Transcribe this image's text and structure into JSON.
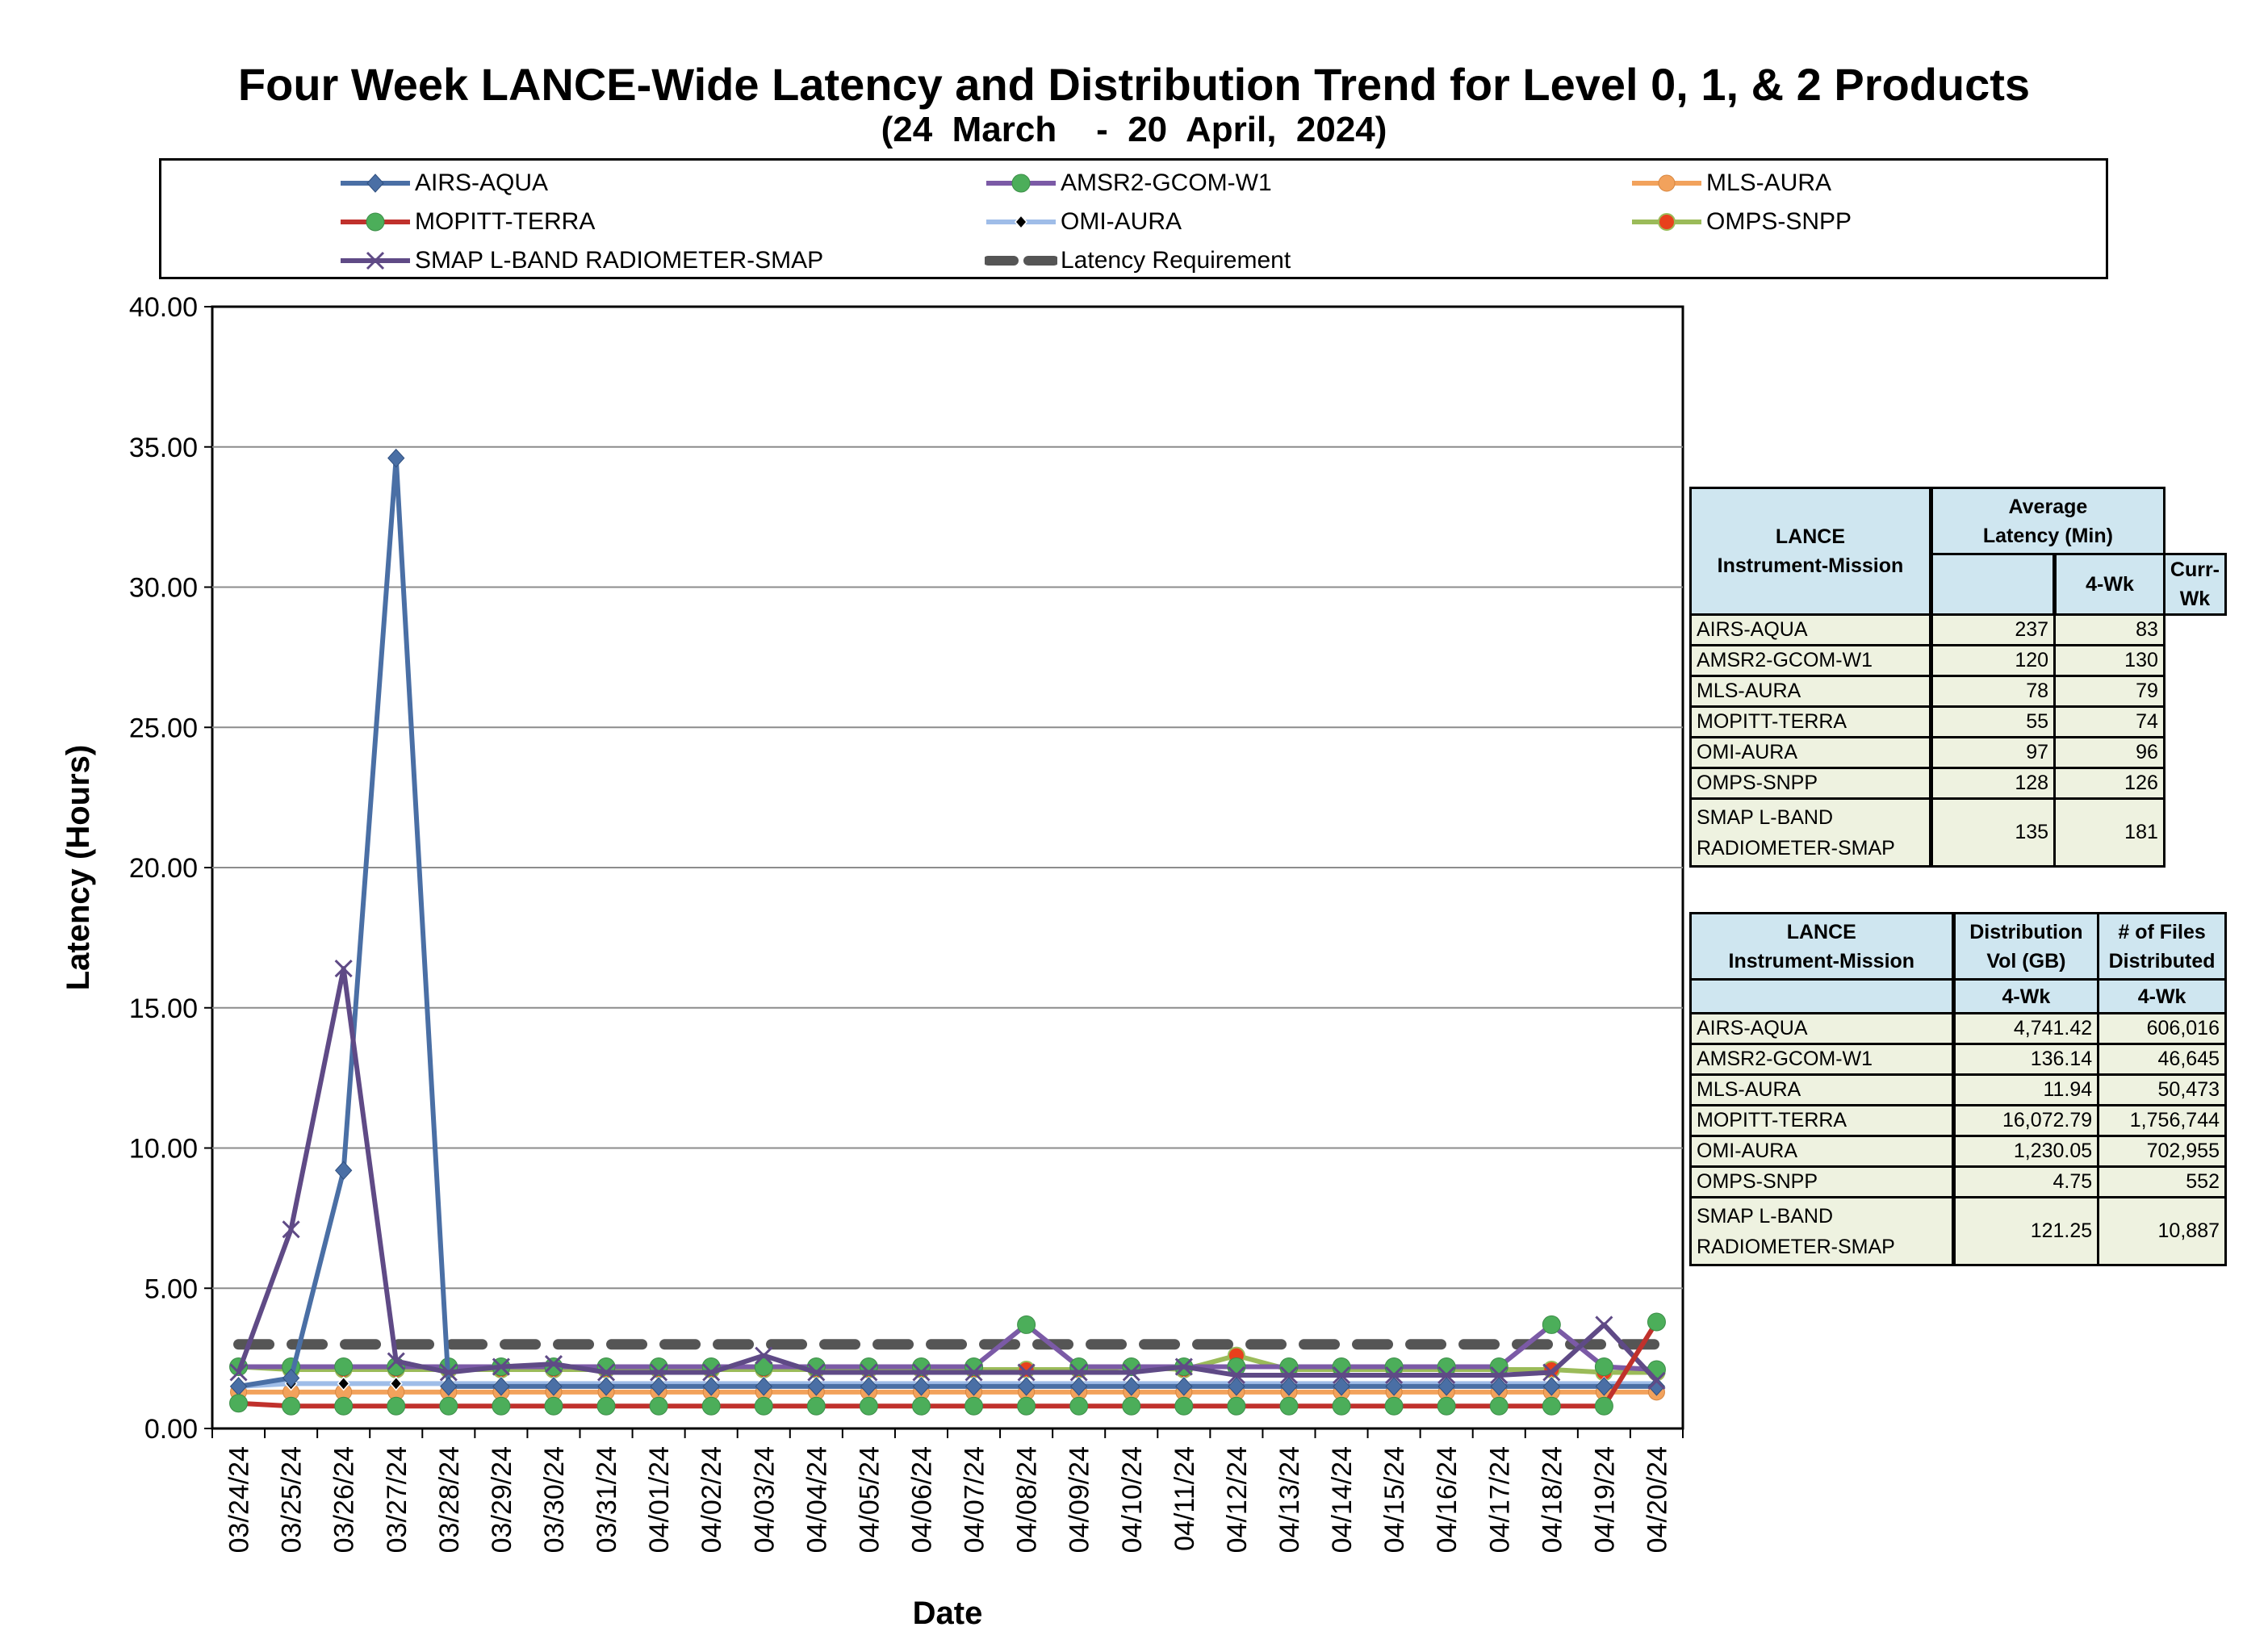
{
  "title": "Four Week LANCE-Wide Latency and Distribution Trend for Level 0, 1, & 2 Products",
  "subtitle": "(24  March    -  20  April,  2024)",
  "legend": [
    {
      "name": "AIRS-AQUA",
      "color": "#4a6fa5",
      "marker": "diamond"
    },
    {
      "name": "AMSR2-GCOM-W1",
      "color": "#7b5aa6",
      "marker": "circle-green"
    },
    {
      "name": "MLS-AURA",
      "color": "#f2a25c",
      "marker": "circle-orange"
    },
    {
      "name": "MOPITT-TERRA",
      "color": "#c0312c",
      "marker": "circle-green"
    },
    {
      "name": "OMI-AURA",
      "color": "#9fbde8",
      "marker": "diamond-black"
    },
    {
      "name": "OMPS-SNPP",
      "color": "#9bbb59",
      "marker": "circle-red"
    },
    {
      "name": "SMAP L-BAND RADIOMETER-SMAP",
      "color": "#5f4a86",
      "marker": "x"
    },
    {
      "name": "Latency Requirement",
      "color": "#3a3a3a",
      "marker": "dash"
    }
  ],
  "chart_data": {
    "type": "line",
    "title": "Four Week LANCE-Wide Latency and Distribution Trend for Level 0, 1, & 2 Products",
    "xlabel": "Date",
    "ylabel": "Latency (Hours)",
    "ylim": [
      0,
      40
    ],
    "yticks": [
      "0.00",
      "5.00",
      "10.00",
      "15.00",
      "20.00",
      "25.00",
      "30.00",
      "35.00",
      "40.00"
    ],
    "categories": [
      "03/24/24",
      "03/25/24",
      "03/26/24",
      "03/27/24",
      "03/28/24",
      "03/29/24",
      "03/30/24",
      "03/31/24",
      "04/01/24",
      "04/02/24",
      "04/03/24",
      "04/04/24",
      "04/05/24",
      "04/06/24",
      "04/07/24",
      "04/08/24",
      "04/09/24",
      "04/10/24",
      "04/11/24",
      "04/12/24",
      "04/13/24",
      "04/14/24",
      "04/15/24",
      "04/16/24",
      "04/17/24",
      "04/18/24",
      "04/19/24",
      "04/20/24"
    ],
    "series": [
      {
        "name": "Latency Requirement",
        "values": [
          3,
          3,
          3,
          3,
          3,
          3,
          3,
          3,
          3,
          3,
          3,
          3,
          3,
          3,
          3,
          3,
          3,
          3,
          3,
          3,
          3,
          3,
          3,
          3,
          3,
          3,
          3,
          3
        ]
      },
      {
        "name": "MLS-AURA",
        "values": [
          1.3,
          1.3,
          1.3,
          1.3,
          1.3,
          1.3,
          1.3,
          1.3,
          1.3,
          1.3,
          1.3,
          1.3,
          1.3,
          1.3,
          1.3,
          1.3,
          1.3,
          1.3,
          1.3,
          1.3,
          1.3,
          1.3,
          1.3,
          1.3,
          1.3,
          1.3,
          1.3,
          1.3
        ]
      },
      {
        "name": "OMPS-SNPP",
        "values": [
          2.2,
          2.1,
          2.1,
          2.1,
          2.1,
          2.1,
          2.1,
          2.1,
          2.1,
          2.1,
          2.1,
          2.1,
          2.1,
          2.1,
          2.1,
          2.1,
          2.1,
          2.2,
          2.1,
          2.6,
          2.1,
          2.1,
          2.1,
          2.1,
          2.1,
          2.1,
          2.0,
          2.0
        ]
      },
      {
        "name": "OMI-AURA",
        "values": [
          1.5,
          1.6,
          1.6,
          1.6,
          1.6,
          1.6,
          1.6,
          1.6,
          1.6,
          1.6,
          1.6,
          1.6,
          1.6,
          1.6,
          1.6,
          1.6,
          1.6,
          1.6,
          1.6,
          1.6,
          1.6,
          1.6,
          1.6,
          1.6,
          1.6,
          1.6,
          1.6,
          1.6
        ]
      },
      {
        "name": "AMSR2-GCOM-W1",
        "values": [
          2.2,
          2.2,
          2.2,
          2.2,
          2.2,
          2.2,
          2.2,
          2.2,
          2.2,
          2.2,
          2.2,
          2.2,
          2.2,
          2.2,
          2.2,
          3.7,
          2.2,
          2.2,
          2.2,
          2.2,
          2.2,
          2.2,
          2.2,
          2.2,
          2.2,
          3.7,
          2.2,
          2.1
        ]
      },
      {
        "name": "AIRS-AQUA",
        "values": [
          1.5,
          1.8,
          9.2,
          34.6,
          1.5,
          1.5,
          1.5,
          1.5,
          1.5,
          1.5,
          1.5,
          1.5,
          1.5,
          1.5,
          1.5,
          1.5,
          1.5,
          1.5,
          1.5,
          1.5,
          1.5,
          1.5,
          1.5,
          1.5,
          1.5,
          1.5,
          1.5,
          1.5
        ]
      },
      {
        "name": "SMAP L-BAND RADIOMETER-SMAP",
        "values": [
          2.0,
          7.1,
          16.4,
          2.4,
          2.0,
          2.2,
          2.3,
          2.0,
          2.0,
          2.0,
          2.6,
          2.0,
          2.0,
          2.0,
          2.0,
          2.0,
          2.0,
          2.0,
          2.2,
          1.9,
          1.9,
          1.9,
          1.9,
          1.9,
          1.9,
          2.0,
          3.7,
          1.7
        ]
      },
      {
        "name": "MOPITT-TERRA",
        "values": [
          0.9,
          0.8,
          0.8,
          0.8,
          0.8,
          0.8,
          0.8,
          0.8,
          0.8,
          0.8,
          0.8,
          0.8,
          0.8,
          0.8,
          0.8,
          0.8,
          0.8,
          0.8,
          0.8,
          0.8,
          0.8,
          0.8,
          0.8,
          0.8,
          0.8,
          0.8,
          0.8,
          3.8
        ]
      }
    ]
  },
  "latency_table": {
    "h_inst": "LANCE\nInstrument-Mission",
    "h_avg": "Average\nLatency (Min)",
    "h_4wk": "4-Wk",
    "h_curr": "Curr-Wk",
    "rows": [
      {
        "name": "AIRS-AQUA",
        "wk4": "237",
        "curr": "83"
      },
      {
        "name": "AMSR2-GCOM-W1",
        "wk4": "120",
        "curr": "130"
      },
      {
        "name": "MLS-AURA",
        "wk4": "78",
        "curr": "79"
      },
      {
        "name": "MOPITT-TERRA",
        "wk4": "55",
        "curr": "74"
      },
      {
        "name": "OMI-AURA",
        "wk4": "97",
        "curr": "96"
      },
      {
        "name": "OMPS-SNPP",
        "wk4": "128",
        "curr": "126"
      },
      {
        "name": "SMAP L-BAND\nRADIOMETER-SMAP",
        "wk4": "135",
        "curr": "181"
      }
    ]
  },
  "distribution_table": {
    "h_inst": "LANCE\nInstrument-Mission",
    "h_vol": "Distribution\nVol (GB)",
    "h_files": "# of Files\nDistributed",
    "h_4wk_a": "4-Wk",
    "h_4wk_b": "4-Wk",
    "rows": [
      {
        "name": "AIRS-AQUA",
        "vol": "4,741.42",
        "files": "606,016"
      },
      {
        "name": "AMSR2-GCOM-W1",
        "vol": "136.14",
        "files": "46,645"
      },
      {
        "name": "MLS-AURA",
        "vol": "11.94",
        "files": "50,473"
      },
      {
        "name": "MOPITT-TERRA",
        "vol": "16,072.79",
        "files": "1,756,744"
      },
      {
        "name": "OMI-AURA",
        "vol": "1,230.05",
        "files": "702,955"
      },
      {
        "name": "OMPS-SNPP",
        "vol": "4.75",
        "files": "552"
      },
      {
        "name": "SMAP L-BAND\nRADIOMETER-SMAP",
        "vol": "121.25",
        "files": "10,887"
      }
    ]
  }
}
